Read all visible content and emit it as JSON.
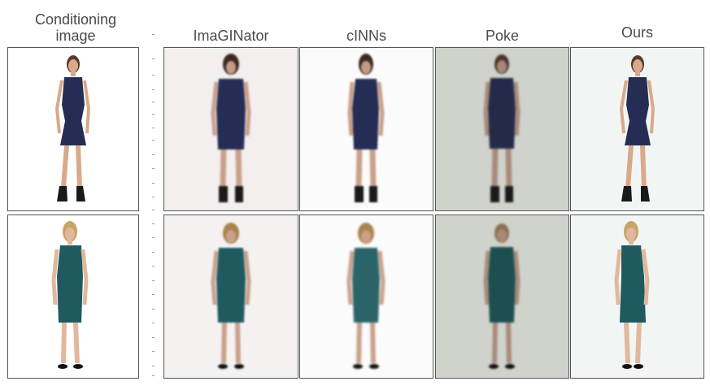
{
  "headers": {
    "conditioning_line1": "Conditioning",
    "conditioning_line2": "image",
    "imaginator": "ImaGINator",
    "cinns": "cINNs",
    "poke": "Poke",
    "ours": "Ours"
  },
  "colors": {
    "dress_row1": "#262d54",
    "dress_row2": "#1f5a60",
    "poke_background": "#cfd3cc",
    "ours_background": "#f1f6f4"
  }
}
